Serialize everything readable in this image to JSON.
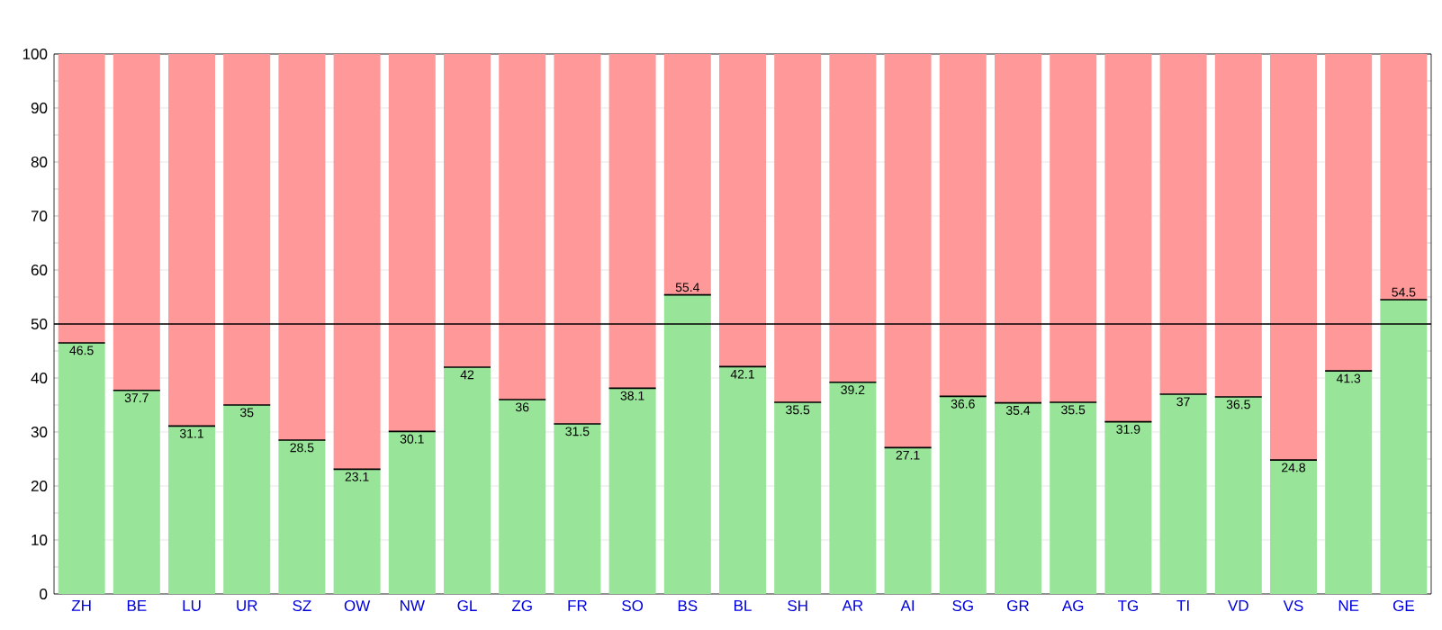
{
  "chart_data": {
    "type": "bar",
    "stacked": true,
    "categories": [
      "ZH",
      "BE",
      "LU",
      "UR",
      "SZ",
      "OW",
      "NW",
      "GL",
      "ZG",
      "FR",
      "SO",
      "BS",
      "BL",
      "SH",
      "AR",
      "AI",
      "SG",
      "GR",
      "AG",
      "TG",
      "TI",
      "VD",
      "VS",
      "NE",
      "GE"
    ],
    "series": [
      {
        "color": "#98e498",
        "values": [
          46.5,
          37.7,
          31.1,
          35,
          28.5,
          23.1,
          30.1,
          42,
          36,
          31.5,
          38.1,
          55.4,
          42.1,
          35.5,
          39.2,
          27.1,
          36.6,
          35.4,
          35.5,
          31.9,
          37,
          36.5,
          24.8,
          41.3,
          54.5
        ],
        "value_labels": [
          "46.5",
          "37.7",
          "31.1",
          "35",
          "28.5",
          "23.1",
          "30.1",
          "42",
          "36",
          "31.5",
          "38.1",
          "55.4",
          "42.1",
          "35.5",
          "39.2",
          "27.1",
          "36.6",
          "35.4",
          "35.5",
          "31.9",
          "37",
          "36.5",
          "24.8",
          "41.3",
          "54.5"
        ]
      },
      {
        "color": "#ff9999",
        "values": [
          53.5,
          62.3,
          68.9,
          65,
          71.5,
          76.9,
          69.9,
          58,
          64,
          68.5,
          61.9,
          44.6,
          57.9,
          64.5,
          60.8,
          72.9,
          63.4,
          64.6,
          64.5,
          68.1,
          63,
          63.5,
          75.2,
          58.7,
          45.5
        ]
      }
    ],
    "ylim": [
      0,
      100
    ],
    "yticks": [
      0,
      10,
      20,
      30,
      40,
      50,
      60,
      70,
      80,
      90,
      100
    ],
    "grid": "y",
    "ref_lines": [
      {
        "axis": "y",
        "value": 50,
        "color": "#000000"
      }
    ]
  }
}
